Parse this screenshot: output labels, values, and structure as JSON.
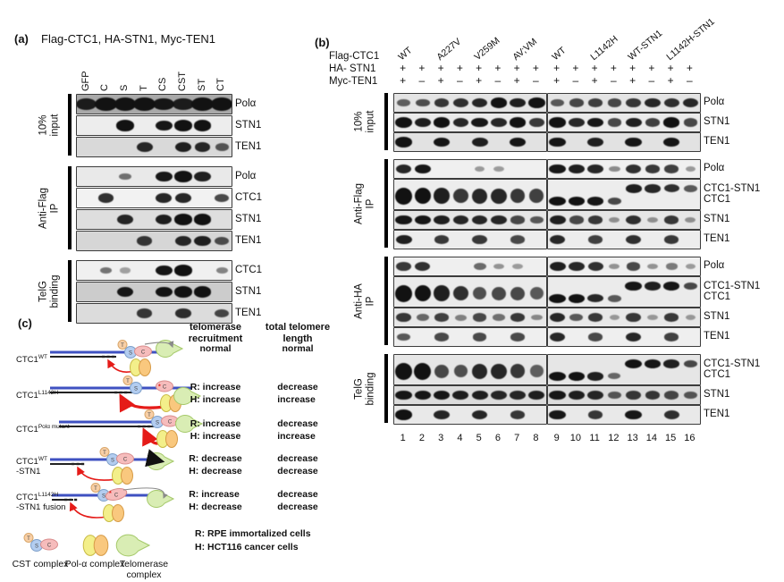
{
  "panel_a": {
    "tag": "(a)",
    "title": "Flag-CTC1, HA-STN1, Myc-TEN1",
    "lanes": [
      "GFP",
      "C",
      "S",
      "T",
      "CS",
      "CST",
      "ST",
      "CT"
    ],
    "groups": [
      {
        "label": "10%\ninput",
        "rows": [
          {
            "label": "Polα",
            "bands": [
              0.85,
              1,
              0.95,
              1,
              0.9,
              0.85,
              1,
              0.95
            ],
            "wide": true,
            "bg": "#a9a9a9"
          },
          {
            "label": "STN1",
            "bands": [
              0,
              0,
              1,
              0,
              0.9,
              1,
              1,
              0
            ],
            "bg": "#ededed"
          },
          {
            "label": "TEN1",
            "bands": [
              0,
              0,
              0,
              0.8,
              0,
              0.85,
              0.8,
              0.5
            ],
            "bg": "#d9d9d9"
          }
        ]
      },
      {
        "label": "Anti-Flag\nIP",
        "rows": [
          {
            "label": "Polα",
            "bands": [
              0,
              0,
              0.35,
              0,
              0.9,
              1,
              0.85,
              0
            ],
            "bg": "#e9e9e9"
          },
          {
            "label": "CTC1",
            "bands": [
              0,
              0.75,
              0,
              0,
              0.8,
              0.8,
              0,
              0.6
            ],
            "bg": "#f2f2f2"
          },
          {
            "label": "STN1",
            "bands": [
              0,
              0,
              0.8,
              0,
              0.85,
              1,
              1,
              0
            ],
            "bg": "#dedede"
          },
          {
            "label": "TEN1",
            "bands": [
              0,
              0,
              0,
              0.7,
              0,
              0.8,
              0.85,
              0.55
            ],
            "bg": "#d6d6d6"
          }
        ]
      },
      {
        "label": "TelG\nbinding",
        "rows": [
          {
            "label": "CTC1",
            "bands": [
              0,
              0.35,
              0.08,
              0,
              0.9,
              1,
              0,
              0.25
            ],
            "bg": "#f0f0f0"
          },
          {
            "label": "STN1",
            "bands": [
              0,
              0,
              0.9,
              0,
              0.95,
              1,
              1,
              0
            ],
            "bg": "#cccccc"
          },
          {
            "label": "TEN1",
            "bands": [
              0,
              0,
              0,
              0.7,
              0,
              0.75,
              0,
              0.6
            ],
            "bg": "#dcdcdc"
          }
        ]
      }
    ]
  },
  "panel_b": {
    "tag": "(b)",
    "header_labels": [
      "Flag-CTC1",
      "HA- STN1",
      "Myc-TEN1"
    ],
    "constructs_left": [
      "WT",
      "A227V",
      "V259M",
      "AV;VM"
    ],
    "constructs_right": [
      "WT",
      "L1142H",
      "WT-STN1",
      "L1142H-STN1"
    ],
    "ha_stn1": {
      "left": [
        "+",
        "+",
        "+",
        "+",
        "+",
        "+",
        "+",
        "+"
      ],
      "right": [
        "+",
        "+",
        "+",
        "+",
        "+",
        "+",
        "+",
        "+"
      ]
    },
    "myc_ten1": {
      "left": [
        "+",
        "–",
        "+",
        "–",
        "+",
        "–",
        "+",
        "–"
      ],
      "right": [
        "+",
        "–",
        "+",
        "–",
        "+",
        "–",
        "+",
        "–"
      ]
    },
    "lane_numbers_left": [
      "1",
      "2",
      "3",
      "4",
      "5",
      "6",
      "7",
      "8"
    ],
    "lane_numbers_right": [
      "9",
      "10",
      "11",
      "12",
      "13",
      "14",
      "15",
      "16"
    ],
    "groups": [
      {
        "label": "10%\ninput",
        "rows": [
          {
            "label": "Polα",
            "left": {
              "bands": [
                0.45,
                0.55,
                0.7,
                0.75,
                0.8,
                0.95,
                0.85,
                1
              ]
            },
            "right": {
              "bands": [
                0.5,
                0.6,
                0.65,
                0.6,
                0.7,
                0.8,
                0.75,
                0.8
              ]
            },
            "bg": "#e4e4e4"
          },
          {
            "label": "STN1",
            "left": {
              "bands": [
                1,
                0.85,
                0.95,
                0.8,
                0.9,
                0.8,
                0.95,
                0.7
              ]
            },
            "right": {
              "bands": [
                0.95,
                0.8,
                0.9,
                0.6,
                0.85,
                0.65,
                0.95,
                0.6
              ]
            },
            "bg": "#ebebeb"
          },
          {
            "label": "TEN1",
            "left": {
              "bands": [
                1,
                0,
                0.9,
                0,
                0.85,
                0,
                0.9,
                0
              ]
            },
            "right": {
              "bands": [
                0.9,
                0,
                0.85,
                0,
                0.9,
                0,
                0.9,
                0
              ]
            },
            "bg": "#e2e2e2"
          }
        ]
      },
      {
        "label": "Anti-Flag\nIP",
        "rows": [
          {
            "label": "Polα",
            "left": {
              "bands": [
                0.8,
                0.9,
                0,
                0,
                0.12,
                0.1,
                0,
                0
              ]
            },
            "right": {
              "bands": [
                0.9,
                0.85,
                0.8,
                0.2,
                0.75,
                0.7,
                0.65,
                0.12
              ]
            },
            "bg": "#f0f0f0"
          },
          {
            "label": "CTC1-STN1\nCTC1",
            "tall": true,
            "left": {
              "bands": [
                1,
                0.95,
                0.85,
                0.7,
                0.8,
                0.8,
                0.7,
                0.65
              ]
            },
            "right": {
              "upper": [
                0,
                0,
                0,
                0,
                0.85,
                0.8,
                0.75,
                0.5
              ],
              "lower": [
                1,
                0.95,
                0.9,
                0.6,
                0,
                0,
                0,
                0
              ]
            },
            "bg": "#ededed"
          },
          {
            "label": "STN1",
            "left": {
              "bands": [
                0.9,
                0.9,
                0.85,
                0.8,
                0.8,
                0.8,
                0.6,
                0.5
              ]
            },
            "right": {
              "bands": [
                0.85,
                0.6,
                0.7,
                0.15,
                0.75,
                0.15,
                0.7,
                0.15
              ]
            },
            "bg": "#e6e6e6"
          },
          {
            "label": "TEN1",
            "left": {
              "bands": [
                0.85,
                0,
                0.7,
                0,
                0.7,
                0,
                0.6,
                0
              ]
            },
            "right": {
              "bands": [
                0.8,
                0,
                0.65,
                0,
                0.75,
                0,
                0.7,
                0
              ]
            },
            "bg": "#ededed"
          }
        ]
      },
      {
        "label": "Anti-HA\nIP",
        "rows": [
          {
            "label": "Polα",
            "left": {
              "bands": [
                0.7,
                0.75,
                0,
                0,
                0.4,
                0.15,
                0.1,
                0
              ]
            },
            "right": {
              "bands": [
                0.85,
                0.8,
                0.75,
                0.15,
                0.6,
                0.15,
                0.3,
                0.1
              ]
            },
            "bg": "#efefef"
          },
          {
            "label": "CTC1-STN1\nCTC1",
            "tall": true,
            "left": {
              "bands": [
                1,
                0.95,
                0.85,
                0.75,
                0.55,
                0.6,
                0.6,
                0.5
              ]
            },
            "right": {
              "upper": [
                0,
                0,
                0,
                0,
                0.9,
                0.85,
                0.9,
                0.6
              ],
              "lower": [
                1,
                0.95,
                0.8,
                0.5,
                0,
                0,
                0,
                0
              ]
            },
            "bg": "#ebebeb"
          },
          {
            "label": "STN1",
            "left": {
              "bands": [
                0.7,
                0.4,
                0.65,
                0.25,
                0.6,
                0.35,
                0.7,
                0.2
              ]
            },
            "right": {
              "bands": [
                0.8,
                0.5,
                0.7,
                0.1,
                0.7,
                0.1,
                0.7,
                0.1
              ]
            },
            "bg": "#e8e8e8"
          },
          {
            "label": "TEN1",
            "left": {
              "bands": [
                0.5,
                0,
                0.6,
                0,
                0.6,
                0,
                0.6,
                0
              ]
            },
            "right": {
              "bands": [
                0.8,
                0,
                0.6,
                0,
                0.8,
                0,
                0.65,
                0
              ]
            },
            "bg": "#efefef"
          }
        ]
      },
      {
        "label": "TelG\nbinding",
        "rows": [
          {
            "label": "CTC1-STN1\nCTC1",
            "tall": true,
            "left": {
              "bands": [
                1,
                1,
                0.6,
                0.55,
                0.8,
                0.8,
                0.7,
                0.45
              ]
            },
            "right": {
              "upper": [
                0,
                0,
                0,
                0,
                0.95,
                0.9,
                0.85,
                0.6
              ],
              "lower": [
                1,
                0.95,
                0.85,
                0.4,
                0,
                0,
                0,
                0
              ]
            },
            "bg": "#e6e6e6"
          },
          {
            "label": "STN1",
            "left": {
              "bands": [
                0.9,
                0.9,
                0.9,
                0.85,
                0.85,
                0.8,
                0.8,
                0.85
              ]
            },
            "right": {
              "bands": [
                0.9,
                0.85,
                0.8,
                0.5,
                0.7,
                0.7,
                0.6,
                0.5
              ]
            },
            "bg": "#dcdcdc"
          },
          {
            "label": "TEN1",
            "left": {
              "bands": [
                1,
                0,
                0.8,
                0,
                0.8,
                0,
                0.7,
                0
              ]
            },
            "right": {
              "bands": [
                0.9,
                0,
                0.7,
                0,
                0.9,
                0,
                0.75,
                0
              ]
            },
            "bg": "#e9e9e9"
          }
        ]
      }
    ]
  },
  "panel_c": {
    "tag": "(c)",
    "headers": [
      "telomerase\nrecruitment",
      "total telomere\nlength"
    ],
    "rows": [
      {
        "base": "CTC1",
        "sup": "WT",
        "sub": "",
        "recruitment": "normal",
        "length": "normal"
      },
      {
        "base": "CTC1",
        "sup": "L1142H",
        "sub": "",
        "recruitment": "R: increase\nH: increase",
        "length": "decrease\nincrease"
      },
      {
        "base": "CTC1",
        "sup": "Polα mutant",
        "sub": "",
        "recruitment": "R: increase\nH: increase",
        "length": "decrease\nincrease"
      },
      {
        "base": "CTC1",
        "sup": "WT",
        "sub": "-STN1",
        "recruitment": "R: decrease\nH: decrease",
        "length": "decrease\ndecrease"
      },
      {
        "base": "CTC1",
        "sup": "L1142H",
        "sub": "-STN1 fusion",
        "recruitment": "R: increase\nH: decrease",
        "length": "decrease\ndecrease"
      }
    ],
    "footnotes": "R: RPE immortalized cells\nH: HCT116 cancer cells",
    "legend": [
      {
        "label": "CST complex",
        "icon": "cst-complex-icon"
      },
      {
        "label": "Pol-α complex",
        "icon": "pol-alpha-complex-icon"
      },
      {
        "label": "Telomerase\ncomplex",
        "icon": "telomerase-complex-icon"
      }
    ],
    "schemes": [
      {
        "line": [
          4,
          132
        ],
        "black": [
          4,
          78
        ],
        "dash": 62,
        "cst": 94,
        "tel": [
          152,
          9
        ],
        "pol": [
          100,
          30
        ],
        "red": "small",
        "link": "curl",
        "detached": false,
        "mark": "",
        "fusion": false
      },
      {
        "line": [
          4,
          162
        ],
        "black": [
          4,
          96
        ],
        "dash": 76,
        "cst": 100,
        "tel": [
          172,
          22
        ],
        "pol": [
          134,
          30
        ],
        "red": "big",
        "link": "",
        "detached": true,
        "mark": "c",
        "fusion": false
      },
      {
        "line": [
          14,
          158
        ],
        "black": [
          14,
          126
        ],
        "dash": 102,
        "cst": 124,
        "tel": [
          174,
          15
        ],
        "pol": [
          130,
          32
        ],
        "red": "big",
        "link": "",
        "detached": false,
        "mark": "c-right",
        "fusion": false
      },
      {
        "line": [
          4,
          114
        ],
        "black": [
          4,
          40
        ],
        "dash": 28,
        "cst": 74,
        "tel": [
          142,
          15
        ],
        "pol": [
          80,
          31
        ],
        "red": "small",
        "link": "black",
        "detached": false,
        "mark": "",
        "fusion": false
      },
      {
        "line": [
          6,
          130
        ],
        "black": [
          6,
          30
        ],
        "dash": 20,
        "cst": 64,
        "tel": [
          142,
          17
        ],
        "pol": [
          70,
          33
        ],
        "red": "small",
        "link": "gray",
        "detached": false,
        "mark": "sc",
        "fusion": true
      }
    ]
  },
  "colors": {
    "band": "#121212",
    "dna_blue": "#3f51c1",
    "strand_black": "#222222",
    "red_arrow": "#e51b18",
    "s_fill": "#b3cdf0",
    "s_stroke": "#7d9fc9",
    "c_fill": "#f6bcbc",
    "c_stroke": "#d98c8c",
    "t_fill": "#f8cfa6",
    "t_stroke": "#d9a76a",
    "pol_yellow": "#f3ef8a",
    "pol_yellow_stroke": "#c9bb45",
    "pol_orange": "#f9c87e",
    "pol_orange_stroke": "#d79b47",
    "telomerase_fill": "#d9edb4",
    "telomerase_stroke": "#a5c96a",
    "gray_arrow": "#8a8a8a"
  }
}
